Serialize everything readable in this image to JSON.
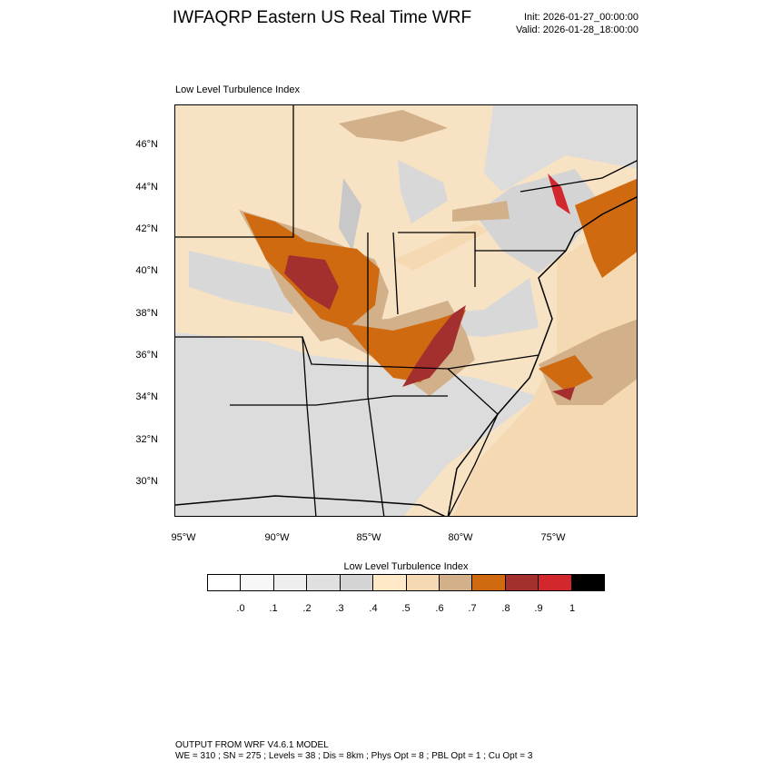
{
  "header": {
    "title": "IWFAQRP Eastern US Real Time WRF",
    "init": "Init: 2026-01-27_00:00:00",
    "valid": "Valid: 2026-01-28_18:00:00"
  },
  "panel": {
    "label": "Low Level Turbulence Index"
  },
  "map": {
    "latitude_labels": [
      "46°N",
      "44°N",
      "42°N",
      "40°N",
      "38°N",
      "36°N",
      "34°N",
      "32°N",
      "30°N"
    ],
    "longitude_labels": [
      "95°W",
      "90°W",
      "85°W",
      "80°W",
      "75°W"
    ],
    "land_color": "#f7e3c4",
    "water_color": "#c8c8c8",
    "boundary_color": "#000000"
  },
  "legend": {
    "title": "Low Level Turbulence Index",
    "colors": [
      "#ffffff",
      "#f7f7f7",
      "#eeeeee",
      "#e0e0e0",
      "#d4d4d4",
      "#ffe9c6",
      "#f5d9b3",
      "#d1b08a",
      "#d06a10",
      "#a3302f",
      "#d2272c",
      "#000000"
    ],
    "tick_labels": [
      ".0",
      ".1",
      ".2",
      ".3",
      ".4",
      ".5",
      ".6",
      ".7",
      ".8",
      ".9",
      "1"
    ]
  },
  "footer": {
    "line1": "OUTPUT FROM WRF V4.6.1 MODEL",
    "line2": "WE = 310 ; SN = 275 ; Levels = 38 ; Dis = 8km ; Phys Opt = 8 ; PBL Opt = 1 ; Cu Opt = 3"
  }
}
